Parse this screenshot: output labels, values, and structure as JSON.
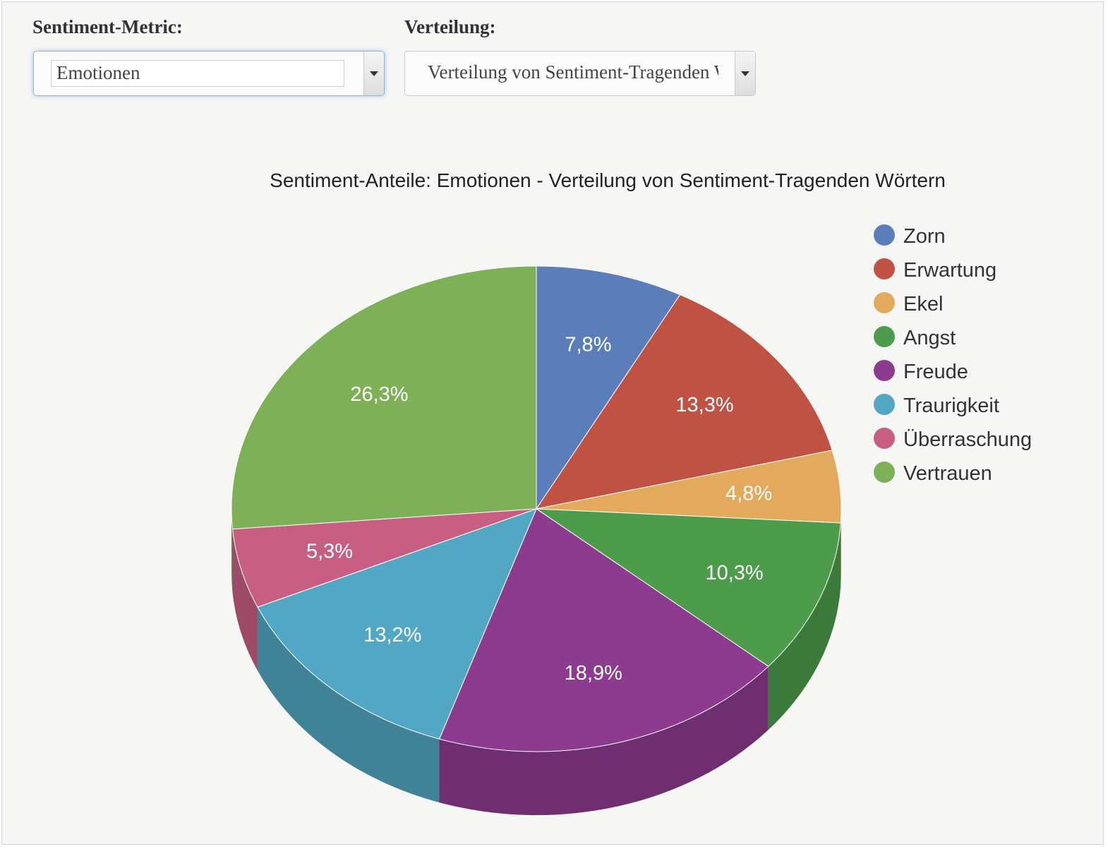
{
  "controls": {
    "metric_label": "Sentiment-Metric:",
    "metric_value": "Emotionen",
    "distribution_label": "Verteilung:",
    "distribution_value": "Verteilung von Sentiment-Tragenden Wörtern"
  },
  "chart_data": {
    "type": "pie",
    "title": "Sentiment-Anteile: Emotionen - Verteilung von Sentiment-Tragenden Wörtern",
    "style": "3d",
    "legend_position": "right",
    "categories": [
      "Zorn",
      "Erwartung",
      "Ekel",
      "Angst",
      "Freude",
      "Traurigkeit",
      "Überraschung",
      "Vertrauen"
    ],
    "values": [
      7.8,
      13.3,
      4.8,
      10.3,
      18.9,
      13.2,
      5.3,
      26.3
    ],
    "labels": [
      "7,8%",
      "13,3%",
      "4,8%",
      "10,3%",
      "18,9%",
      "13,2%",
      "5,3%",
      "26,3%"
    ],
    "colors": [
      "#5b7db9",
      "#c05244",
      "#e3a95d",
      "#4d9c4b",
      "#8d3b8f",
      "#52a8c4",
      "#c85f82",
      "#7eb157"
    ]
  }
}
